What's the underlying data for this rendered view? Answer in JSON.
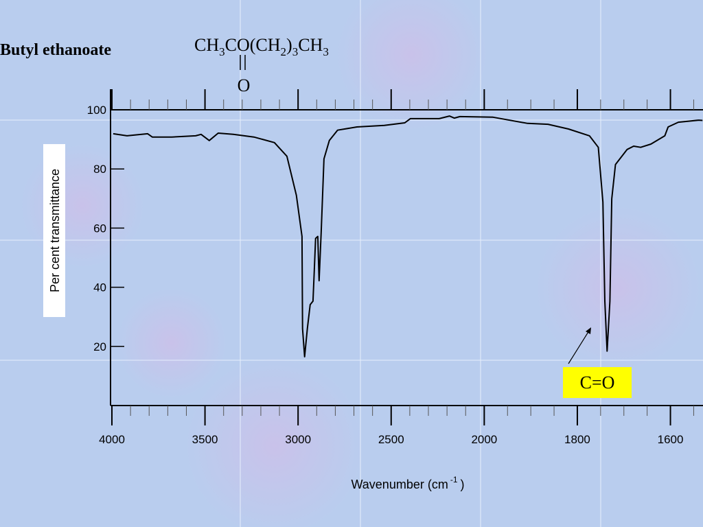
{
  "title": "Butyl ethanoate",
  "formula": [
    {
      "text": "CH"
    },
    {
      "sub": "3"
    },
    {
      "text": "CO(CH"
    },
    {
      "sub": "2"
    },
    {
      "text": ")"
    },
    {
      "sub": "3"
    },
    {
      "text": "CH"
    },
    {
      "sub": "3"
    }
  ],
  "formula_oxygen": "O",
  "chart_data": {
    "type": "line",
    "xlabel": {
      "text": "Wavenumber (cm",
      "sup": "-1",
      "tail": ")"
    },
    "ylabel": "Per cent transmittance",
    "x": [
      3993,
      3919,
      3808,
      3783,
      3679,
      3550,
      3521,
      3477,
      3429,
      3348,
      3237,
      3127,
      3060,
      3009,
      2979,
      2976,
      2965,
      2950,
      2935,
      2920,
      2913,
      2906,
      2894,
      2887,
      2876,
      2861,
      2832,
      2788,
      2684,
      2537,
      2427,
      2397,
      2242,
      2187,
      2161,
      2131,
      1981,
      1907,
      1863,
      1819,
      1774,
      1755,
      1745,
      1741,
      1736,
      1730,
      1726,
      1718,
      1693,
      1679,
      1664,
      1642,
      1612,
      1605,
      1583,
      1539,
      1531
    ],
    "values": [
      91.9,
      91.2,
      91.9,
      90.8,
      90.8,
      91.2,
      91.7,
      89.6,
      92.1,
      91.7,
      90.8,
      88.9,
      84.3,
      71.1,
      57.2,
      26,
      16.5,
      26,
      34.1,
      35.3,
      45.7,
      56.5,
      57.2,
      42.2,
      58.4,
      83.4,
      89.6,
      93.1,
      94.2,
      94.7,
      95.6,
      97,
      97,
      97.9,
      97.2,
      97.7,
      97.5,
      95.4,
      95.1,
      93.5,
      91.2,
      87.3,
      68.8,
      35.3,
      18.4,
      35.3,
      69.9,
      81.5,
      86.6,
      87.7,
      87.3,
      88.4,
      91.2,
      94.2,
      95.8,
      96.5,
      96.4
    ],
    "color": "#000000",
    "xlim": [
      4000,
      1530
    ],
    "xticks": [
      4000,
      3500,
      3000,
      2500,
      2000,
      1800,
      1600
    ],
    "xminor": [
      3900,
      3800,
      3700,
      3600,
      3400,
      3300,
      3200,
      3100,
      2900,
      2800,
      2700,
      2600,
      2400,
      2300,
      2200,
      2100,
      1950,
      1900,
      1850,
      1750,
      1700,
      1650,
      1550
    ],
    "ylim": [
      0,
      100
    ],
    "yticks": [
      20,
      40,
      60,
      80,
      100
    ],
    "annotations": [
      {
        "text": "C=O"
      }
    ]
  }
}
